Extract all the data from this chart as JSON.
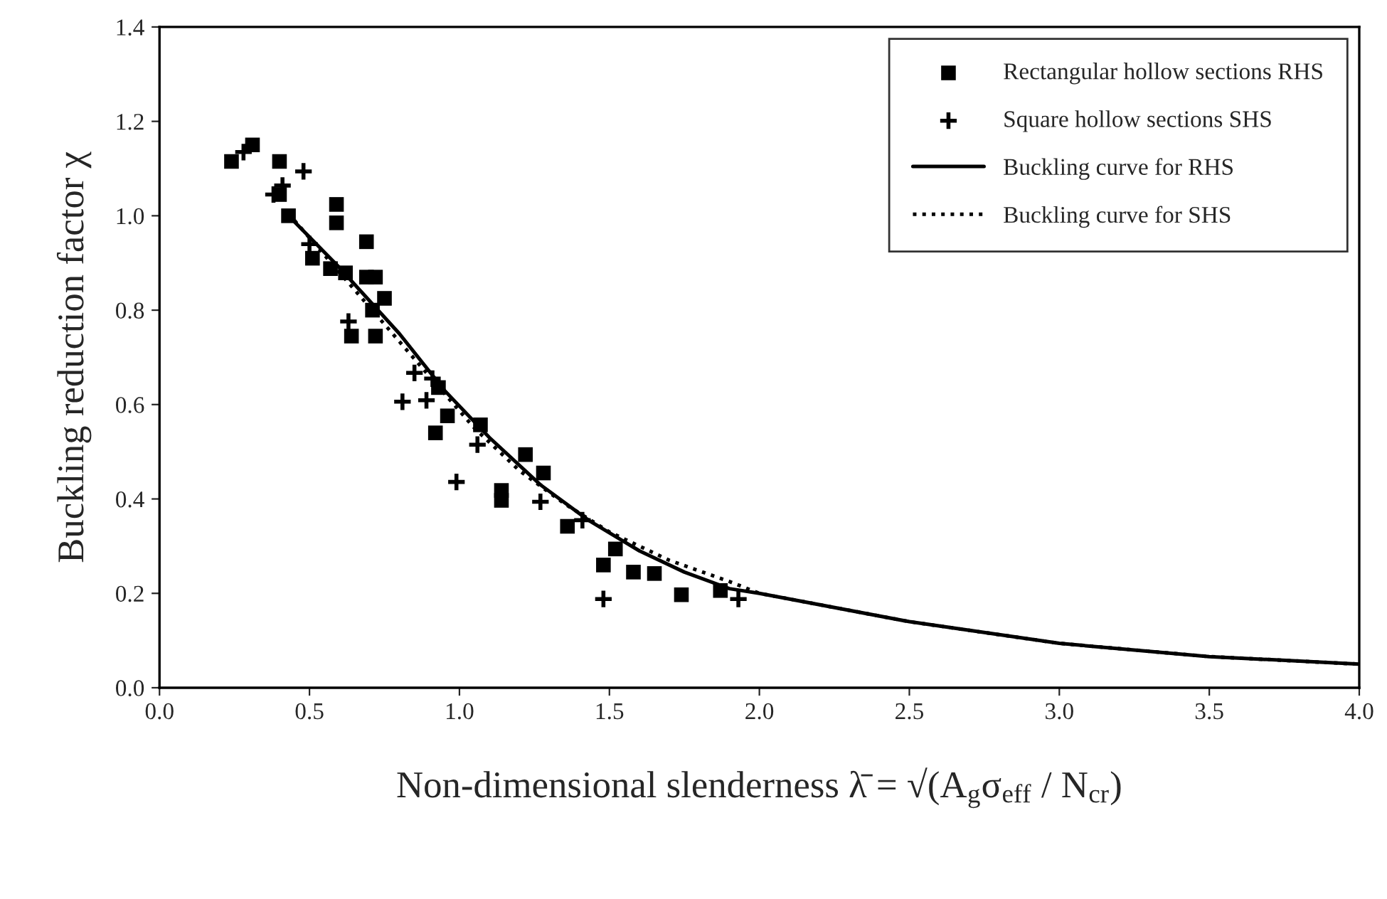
{
  "chart_data": {
    "type": "scatter",
    "xlabel": "Non-dimensional slenderness λ̄ = √(A$_{g}$σ$_{eff}$ / N$_{cr}$)",
    "ylabel": "Buckling reduction factor χ",
    "xlim": [
      0,
      4
    ],
    "ylim": [
      0,
      1.4
    ],
    "xticks": [
      {
        "value": 0,
        "label": "0.0"
      },
      0.5,
      {
        "value": 1,
        "label": "1.0"
      },
      1.5,
      {
        "value": 2,
        "label": "2.0"
      },
      2.5,
      {
        "value": 3,
        "label": "3.0"
      },
      3.5,
      {
        "value": 4,
        "label": "4.0"
      }
    ],
    "yticks": [
      {
        "value": 0,
        "label": "0.0"
      },
      0.2,
      0.4,
      0.6,
      0.8,
      {
        "value": 1,
        "label": "1.0"
      },
      1.2,
      1.4
    ],
    "grid": false,
    "legend": "top right",
    "series": [
      {
        "name": "Rectangular hollow sections RHS",
        "marker": "square",
        "color": "#000000",
        "x": [
          0.24,
          0.31,
          0.4,
          0.4,
          0.43,
          0.51,
          0.57,
          0.59,
          0.59,
          0.62,
          0.69,
          0.69,
          0.72,
          0.75,
          0.71,
          0.72,
          0.64,
          0.93,
          0.96,
          0.92,
          1.07,
          1.22,
          1.28,
          1.14,
          1.14,
          1.36,
          1.52,
          1.48,
          1.58,
          1.65,
          1.74,
          1.87
        ],
        "values": [
          1.115,
          1.15,
          1.115,
          1.045,
          1.0,
          0.91,
          0.888,
          1.024,
          0.985,
          0.879,
          0.945,
          0.87,
          0.87,
          0.825,
          0.8,
          0.745,
          0.745,
          0.636,
          0.576,
          0.54,
          0.557,
          0.494,
          0.455,
          0.418,
          0.397,
          0.342,
          0.294,
          0.26,
          0.245,
          0.242,
          0.197,
          0.206
        ]
      },
      {
        "name": "Square hollow sections SHS",
        "marker": "cross",
        "color": "#000000",
        "x": [
          0.28,
          0.48,
          0.41,
          0.38,
          0.5,
          0.63,
          0.85,
          0.81,
          0.89,
          0.91,
          0.99,
          1.06,
          1.27,
          1.41,
          1.48,
          1.93
        ],
        "values": [
          1.135,
          1.094,
          1.064,
          1.045,
          0.94,
          0.776,
          0.667,
          0.606,
          0.609,
          0.655,
          0.436,
          0.515,
          0.394,
          0.355,
          0.188,
          0.188
        ]
      },
      {
        "name": "Buckling curve for RHS",
        "type": "line",
        "line_style": "solid",
        "marker": "none",
        "color": "#000000",
        "x": [
          0.43,
          0.6,
          0.8,
          0.95,
          1.1,
          1.27,
          1.43,
          1.6,
          1.75,
          1.9,
          2.0,
          2.5,
          3.0,
          3.5,
          4.0
        ],
        "values": [
          1.0,
          0.89,
          0.75,
          0.63,
          0.53,
          0.43,
          0.355,
          0.29,
          0.245,
          0.21,
          0.2,
          0.14,
          0.094,
          0.066,
          0.05
        ]
      },
      {
        "name": "Buckling curve for SHS",
        "type": "line",
        "line_style": "dotted",
        "marker": "none",
        "color": "#000000",
        "x": [
          0.45,
          0.6,
          0.75,
          0.9,
          1.05,
          1.2,
          1.35,
          1.5,
          1.7,
          1.9,
          2.0,
          2.5,
          3.0,
          3.5,
          4.0
        ],
        "values": [
          0.99,
          0.88,
          0.77,
          0.66,
          0.55,
          0.46,
          0.39,
          0.33,
          0.27,
          0.225,
          0.2,
          0.14,
          0.094,
          0.066,
          0.05
        ]
      }
    ]
  }
}
